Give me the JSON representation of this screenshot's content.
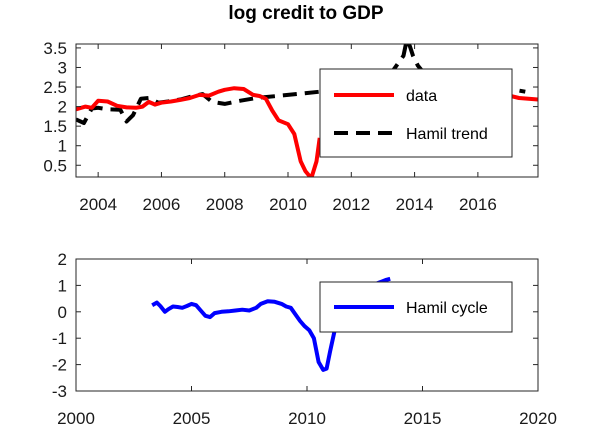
{
  "chart_data": [
    {
      "type": "line",
      "title": "log credit to GDP",
      "xlim": [
        2003.3,
        2017.9
      ],
      "ylim": [
        0.2,
        3.6
      ],
      "xticks": [
        2004,
        2006,
        2008,
        2010,
        2012,
        2014,
        2016
      ],
      "xtick_labels": [
        "2004",
        "2006",
        "2008",
        "2010",
        "2012",
        "2014",
        "2016"
      ],
      "yticks": [
        0.5,
        1,
        1.5,
        2,
        2.5,
        3,
        3.5
      ],
      "ytick_labels": [
        "0.5",
        "1",
        "1.5",
        "2",
        "2.5",
        "3",
        "3.5"
      ],
      "legend_position": "right",
      "series": [
        {
          "name": "Hamil trend",
          "color": "#000000",
          "style": "dashed",
          "x": [
            2003.3,
            2003.55,
            2003.8,
            2004.0,
            2004.3,
            2004.7,
            2004.9,
            2005.1,
            2005.35,
            2005.6,
            2005.9,
            2006.2,
            2006.6,
            2007.0,
            2007.3,
            2007.6,
            2008.0,
            2008.5,
            2009.0,
            2010.0,
            2011.0,
            2012.0,
            2012.8,
            2013.3,
            2013.65,
            2013.75,
            2013.85,
            2013.95,
            2014.1,
            2014.3,
            2014.6,
            2015.0,
            2015.5,
            2016.0,
            2016.5,
            2017.0,
            2017.5
          ],
          "y": [
            1.67,
            1.58,
            1.95,
            1.97,
            1.93,
            1.92,
            1.62,
            1.78,
            2.2,
            2.22,
            2.1,
            2.13,
            2.18,
            2.27,
            2.32,
            2.12,
            2.07,
            2.15,
            2.22,
            2.3,
            2.38,
            2.45,
            2.55,
            2.9,
            3.3,
            3.7,
            3.55,
            3.3,
            3.05,
            2.85,
            2.72,
            2.62,
            2.58,
            2.55,
            2.5,
            2.45,
            2.38
          ]
        },
        {
          "name": "data",
          "color": "#ff0000",
          "style": "solid",
          "x": [
            2003.3,
            2003.6,
            2003.8,
            2004.0,
            2004.3,
            2004.6,
            2004.9,
            2005.2,
            2005.4,
            2005.6,
            2005.8,
            2006.0,
            2006.3,
            2006.6,
            2006.9,
            2007.2,
            2007.5,
            2007.8,
            2008.0,
            2008.3,
            2008.6,
            2008.9,
            2009.1,
            2009.3,
            2009.5,
            2009.7,
            2010.0,
            2010.2,
            2010.4,
            2010.55,
            2010.65,
            2010.75,
            2010.9,
            2011.0
          ],
          "y": [
            1.93,
            2.0,
            1.97,
            2.15,
            2.13,
            2.02,
            1.98,
            1.97,
            2.0,
            2.12,
            2.05,
            2.1,
            2.13,
            2.17,
            2.22,
            2.3,
            2.28,
            2.38,
            2.43,
            2.47,
            2.45,
            2.3,
            2.27,
            2.2,
            1.9,
            1.65,
            1.55,
            1.3,
            0.6,
            0.35,
            0.25,
            0.2,
            0.6,
            1.2
          ]
        },
        {
          "name": "",
          "color": "#ff0000",
          "style": "solid",
          "x": [
            2016.5,
            2016.9,
            2017.3,
            2017.6,
            2017.9
          ],
          "y": [
            2.38,
            2.3,
            2.22,
            2.2,
            2.18
          ]
        }
      ]
    },
    {
      "type": "line",
      "title": "",
      "xlim": [
        2000,
        2020
      ],
      "ylim": [
        -3,
        2
      ],
      "xticks": [
        2000,
        2005,
        2010,
        2015,
        2020
      ],
      "xtick_labels": [
        "2000",
        "2005",
        "2010",
        "2015",
        "2020"
      ],
      "yticks": [
        -3,
        -2,
        -1,
        0,
        1,
        2
      ],
      "ytick_labels": [
        "-3",
        "-2",
        "-1",
        "0",
        "1",
        "2"
      ],
      "legend_position": "right",
      "series": [
        {
          "name": "Hamil cycle",
          "color": "#0000ff",
          "style": "solid",
          "x": [
            2003.3,
            2003.5,
            2003.65,
            2003.85,
            2004.0,
            2004.2,
            2004.4,
            2004.6,
            2004.8,
            2005.0,
            2005.2,
            2005.4,
            2005.6,
            2005.8,
            2006.0,
            2006.3,
            2006.6,
            2006.9,
            2007.2,
            2007.5,
            2007.8,
            2008.0,
            2008.3,
            2008.6,
            2008.9,
            2009.1,
            2009.3,
            2009.5,
            2009.7,
            2009.9,
            2010.1,
            2010.3,
            2010.5,
            2010.7,
            2010.85,
            2011.0,
            2011.2
          ],
          "y": [
            0.25,
            0.35,
            0.22,
            0.0,
            0.1,
            0.2,
            0.18,
            0.15,
            0.22,
            0.3,
            0.25,
            0.05,
            -0.15,
            -0.2,
            -0.05,
            0.0,
            0.02,
            0.05,
            0.08,
            0.05,
            0.15,
            0.3,
            0.4,
            0.38,
            0.3,
            0.2,
            0.15,
            -0.1,
            -0.35,
            -0.55,
            -0.7,
            -1.0,
            -1.9,
            -2.2,
            -2.15,
            -1.5,
            -0.7
          ]
        },
        {
          "name": "",
          "color": "#0000ff",
          "style": "solid",
          "x": [
            2012.8,
            2013.1,
            2013.4,
            2013.6
          ],
          "y": [
            1.0,
            1.1,
            1.2,
            1.25
          ]
        }
      ]
    }
  ]
}
